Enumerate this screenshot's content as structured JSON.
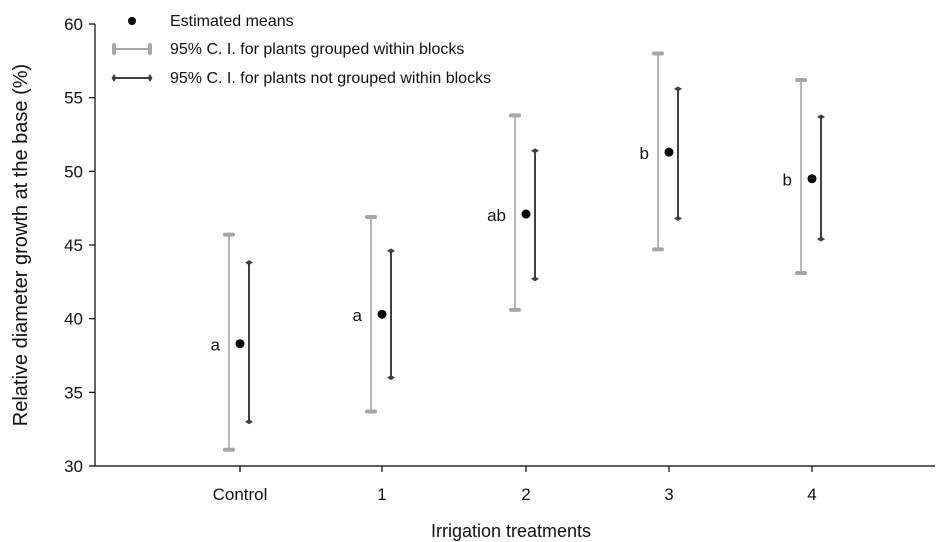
{
  "chart_data": {
    "type": "scatter",
    "xlabel": "Irrigation treatments",
    "ylabel": "Relative diameter growth at the base (%)",
    "ylim": [
      30,
      60
    ],
    "yticks": [
      30,
      35,
      40,
      45,
      50,
      55,
      60
    ],
    "categories": [
      "Control",
      "1",
      "2",
      "3",
      "4"
    ],
    "grid": false,
    "legend_placement": "top-left",
    "series": [
      {
        "name": "Estimated means",
        "values": [
          38.3,
          40.3,
          47.1,
          51.3,
          49.5
        ],
        "color": "#000000"
      },
      {
        "name": "95% C. I. for plants grouped within blocks",
        "lower": [
          31.1,
          33.7,
          40.6,
          44.7,
          43.1
        ],
        "upper": [
          45.7,
          46.9,
          53.8,
          58.0,
          56.2
        ],
        "color": "#a6a6a6"
      },
      {
        "name": "95% C. I. for plants not grouped within blocks",
        "lower": [
          33.0,
          36.0,
          42.7,
          46.8,
          45.4
        ],
        "upper": [
          43.8,
          44.6,
          51.4,
          55.6,
          53.7
        ],
        "color": "#404040"
      }
    ],
    "annotations": [
      "a",
      "a",
      "ab",
      "b",
      "b"
    ]
  }
}
